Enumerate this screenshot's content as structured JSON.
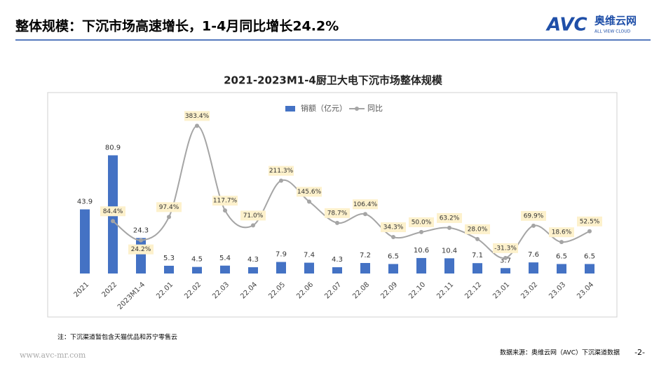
{
  "header": {
    "title": "整体规模：下沉市场高速增长，1-4月同比增长24.2%",
    "logo": "AVC",
    "brand": "奥维云网",
    "brand_en": "ALL VIEW CLOUD"
  },
  "chart_data": {
    "type": "bar-line",
    "title": "2021-2023M1-4厨卫大电下沉市场整体规模",
    "categories": [
      "2021",
      "2022",
      "2023M1-4",
      "22.01",
      "22.02",
      "22.03",
      "22.04",
      "22.05",
      "22.06",
      "22.07",
      "22.08",
      "22.09",
      "22.10",
      "22.11",
      "22.12",
      "23.01",
      "23.02",
      "23.03",
      "23.04"
    ],
    "series": [
      {
        "name": "销额（亿元）",
        "color": "#4472c4",
        "values": [
          43.9,
          80.9,
          24.3,
          5.3,
          4.5,
          5.4,
          4.3,
          7.9,
          7.4,
          4.3,
          7.2,
          6.5,
          10.6,
          10.4,
          7.1,
          3.7,
          7.6,
          6.5,
          6.5
        ]
      },
      {
        "name": "同比",
        "color": "#a5a5a5",
        "axis": "y2",
        "values": [
          null,
          84.4,
          24.2,
          97.4,
          383.4,
          117.7,
          71.0,
          211.3,
          145.6,
          78.7,
          106.4,
          34.3,
          50.0,
          63.2,
          28.0,
          -31.3,
          69.9,
          18.6,
          52.5
        ],
        "value_labels": [
          null,
          "84.4%",
          "24.2%",
          "97.4%",
          "383.4%",
          "117.7%",
          "71.0%",
          "211.3%",
          "145.6%",
          "78.7%",
          "106.4%",
          "34.3%",
          "50.0%",
          "63.2%",
          "28.0%",
          "-31.3%",
          "69.9%",
          "18.6%",
          "52.5%"
        ]
      }
    ],
    "ylim": [
      0,
      120
    ],
    "y2lim": [
      -80,
      470
    ],
    "legend": "top"
  },
  "note": "注：下沉渠道暂包含天猫优品和苏宁零售云",
  "footer": {
    "website": "www.avc-mr.com",
    "source": "数据来源：奥维云网（AVC）下沉渠道数据",
    "page": "-2-"
  }
}
